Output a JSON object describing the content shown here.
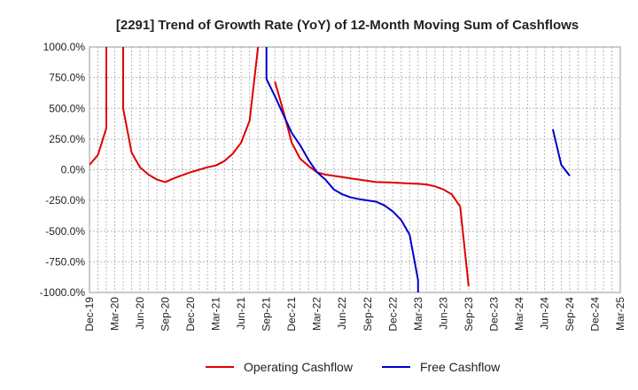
{
  "chart_data": {
    "type": "line",
    "title": "[2291]  Trend of Growth Rate (YoY) of 12-Month Moving Sum of Cashflows",
    "xlabel": "",
    "ylabel": "",
    "ylim": [
      -1000,
      1000
    ],
    "xlim": [
      "2019-12",
      "2025-03"
    ],
    "grid": true,
    "legend_position": "bottom",
    "y_ticks": [
      "1000.0%",
      "750.0%",
      "500.0%",
      "250.0%",
      "0.0%",
      "-250.0%",
      "-500.0%",
      "-750.0%",
      "-1000.0%"
    ],
    "x_ticks": [
      "Dec-19",
      "Mar-20",
      "Jun-20",
      "Sep-20",
      "Dec-20",
      "Mar-21",
      "Jun-21",
      "Sep-21",
      "Dec-21",
      "Mar-22",
      "Jun-22",
      "Sep-22",
      "Dec-22",
      "Mar-23",
      "Jun-23",
      "Sep-23",
      "Dec-23",
      "Mar-24",
      "Jun-24",
      "Sep-24",
      "Dec-24",
      "Mar-25"
    ],
    "series": [
      {
        "name": "Operating Cashflow",
        "color": "#dd0000",
        "segments": [
          [
            [
              "2019-12",
              40
            ],
            [
              "2020-01",
              120
            ],
            [
              "2020-02",
              340
            ],
            [
              "2020-02",
              1000
            ]
          ],
          [
            [
              "2020-04",
              1000
            ],
            [
              "2020-04",
              500
            ],
            [
              "2020-05",
              140
            ],
            [
              "2020-06",
              20
            ],
            [
              "2020-07",
              -40
            ],
            [
              "2020-08",
              -80
            ],
            [
              "2020-09",
              -100
            ],
            [
              "2020-10",
              -70
            ],
            [
              "2020-11",
              -45
            ],
            [
              "2020-12",
              -20
            ],
            [
              "2021-01",
              0
            ],
            [
              "2021-02",
              20
            ],
            [
              "2021-03",
              35
            ],
            [
              "2021-04",
              70
            ],
            [
              "2021-05",
              130
            ],
            [
              "2021-06",
              220
            ],
            [
              "2021-07",
              400
            ],
            [
              "2021-08",
              1000
            ]
          ],
          [
            [
              "2021-10",
              720
            ],
            [
              "2021-11",
              480
            ],
            [
              "2021-12",
              220
            ],
            [
              "2022-01",
              90
            ],
            [
              "2022-02",
              30
            ],
            [
              "2022-03",
              -20
            ],
            [
              "2022-04",
              -40
            ],
            [
              "2022-05",
              -50
            ],
            [
              "2022-06",
              -60
            ],
            [
              "2022-07",
              -70
            ],
            [
              "2022-08",
              -80
            ],
            [
              "2022-09",
              -90
            ],
            [
              "2022-10",
              -100
            ],
            [
              "2022-11",
              -102
            ],
            [
              "2022-12",
              -105
            ],
            [
              "2023-01",
              -108
            ],
            [
              "2023-02",
              -112
            ],
            [
              "2023-03",
              -115
            ],
            [
              "2023-04",
              -120
            ],
            [
              "2023-05",
              -135
            ],
            [
              "2023-06",
              -160
            ],
            [
              "2023-07",
              -200
            ],
            [
              "2023-08",
              -300
            ],
            [
              "2023-09",
              -950
            ]
          ]
        ]
      },
      {
        "name": "Free Cashflow",
        "color": "#0000cc",
        "segments": [
          [
            [
              "2021-09",
              1000
            ],
            [
              "2021-09",
              740
            ],
            [
              "2021-10",
              600
            ],
            [
              "2021-11",
              450
            ],
            [
              "2021-12",
              300
            ],
            [
              "2022-01",
              200
            ],
            [
              "2022-02",
              80
            ],
            [
              "2022-03",
              -20
            ],
            [
              "2022-04",
              -80
            ],
            [
              "2022-05",
              -160
            ],
            [
              "2022-06",
              -200
            ],
            [
              "2022-07",
              -225
            ],
            [
              "2022-08",
              -240
            ],
            [
              "2022-09",
              -250
            ],
            [
              "2022-10",
              -260
            ],
            [
              "2022-11",
              -290
            ],
            [
              "2022-12",
              -340
            ],
            [
              "2023-01",
              -410
            ],
            [
              "2023-02",
              -530
            ],
            [
              "2023-03",
              -900
            ],
            [
              "2023-03",
              -1000
            ]
          ],
          [
            [
              "2024-07",
              330
            ],
            [
              "2024-08",
              40
            ],
            [
              "2024-09",
              -50
            ]
          ]
        ]
      }
    ]
  }
}
